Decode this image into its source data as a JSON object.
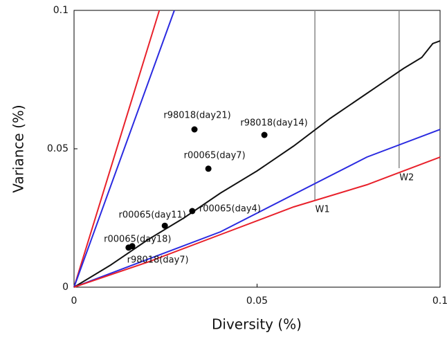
{
  "chart_data": {
    "type": "line",
    "x_label": "Diversity (%)",
    "y_label": "Variance (%)",
    "xlim": [
      0,
      0.1
    ],
    "ylim": [
      0,
      0.1
    ],
    "xticks": [
      0,
      0.05,
      0.1
    ],
    "yticks": [
      0,
      0.05,
      0.1
    ],
    "series": [
      {
        "color": "#e8202a",
        "x": [
          0,
          0.0233
        ],
        "y": [
          0,
          0.1
        ]
      },
      {
        "color": "#2a2ae0",
        "x": [
          0,
          0.0274
        ],
        "y": [
          0,
          0.1
        ]
      },
      {
        "color": "#111111",
        "x": [
          0,
          0.01,
          0.02,
          0.03,
          0.04,
          0.05,
          0.06,
          0.07,
          0.08,
          0.09,
          0.095,
          0.098,
          0.1
        ],
        "y": [
          0,
          0.008,
          0.017,
          0.025,
          0.034,
          0.042,
          0.051,
          0.061,
          0.07,
          0.079,
          0.083,
          0.088,
          0.089
        ]
      },
      {
        "color": "#2a2ae0",
        "x": [
          0,
          0.04,
          0.08,
          0.1
        ],
        "y": [
          0,
          0.02,
          0.047,
          0.057
        ]
      },
      {
        "color": "#e8202a",
        "x": [
          0,
          0.02,
          0.04,
          0.06,
          0.08,
          0.1
        ],
        "y": [
          0,
          0.009,
          0.019,
          0.029,
          0.037,
          0.047
        ]
      }
    ],
    "points": {
      "color": "#000000",
      "labels": [
        "r98018(day21)",
        "r98018(day14)",
        "r00065(day7)",
        "r00065(day4)",
        "r00065(day11)",
        "r00065(day18)",
        "r98018(day7)"
      ],
      "x": [
        0.0329,
        0.052,
        0.0367,
        0.0323,
        0.0248,
        0.0149,
        0.0159
      ],
      "y": [
        0.057,
        0.055,
        0.0428,
        0.0275,
        0.0222,
        0.0143,
        0.0148
      ]
    },
    "markers": {
      "color": "#888888",
      "labels": [
        "W1",
        "W2"
      ],
      "x": [
        0.0658,
        0.0888
      ],
      "y_from": [
        0.0315,
        0.043
      ]
    }
  }
}
